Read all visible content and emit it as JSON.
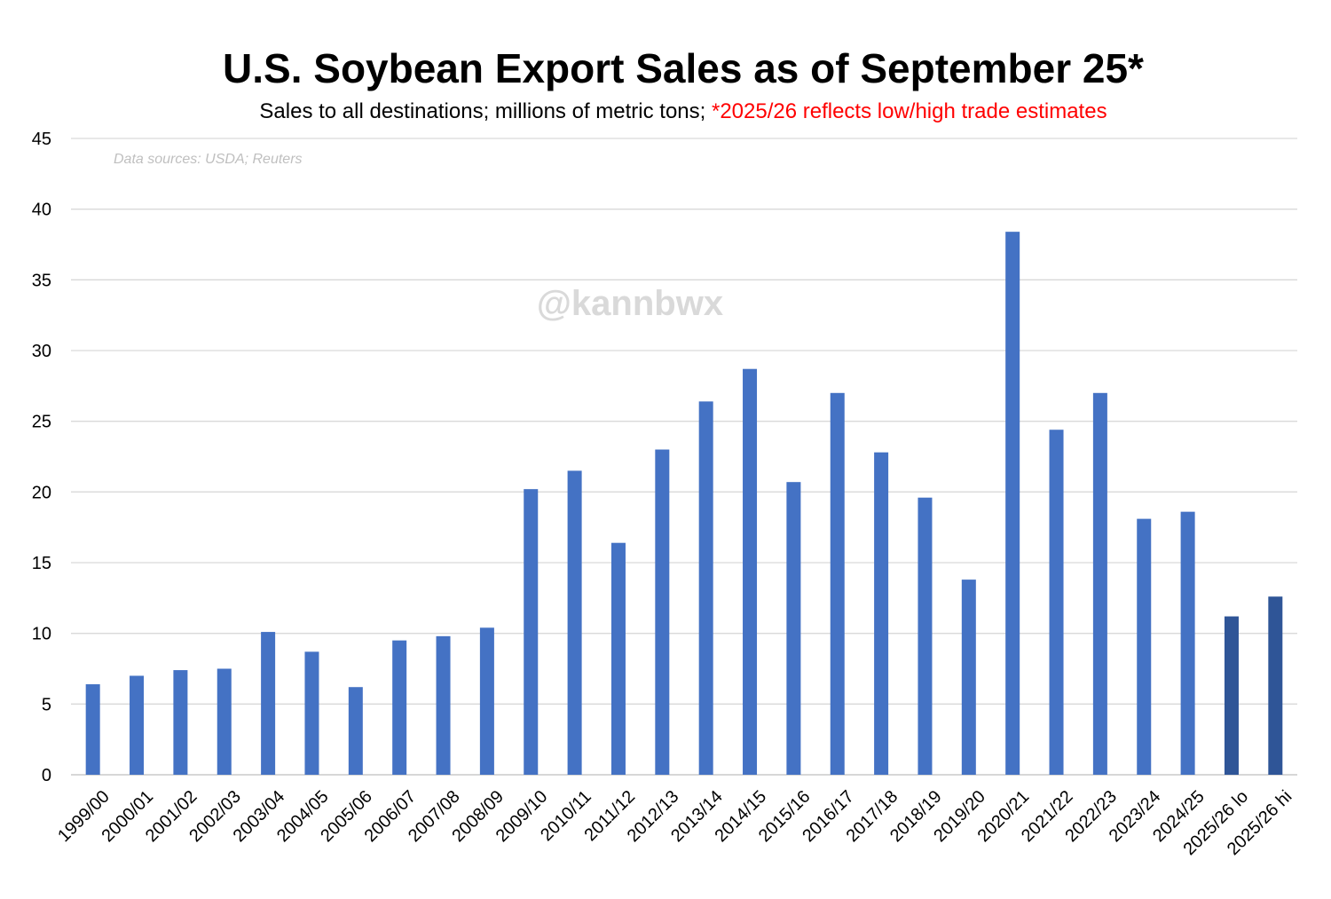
{
  "chart_data": {
    "type": "bar",
    "title": "U.S. Soybean Export Sales as of September 25*",
    "subtitle_main": "Sales to all destinations; millions of metric tons; ",
    "subtitle_note": "*2025/26 reflects low/high trade estimates",
    "source_note": "Data sources: USDA; Reuters",
    "watermark": "@kannbwx",
    "categories": [
      "1999/00",
      "2000/01",
      "2001/02",
      "2002/03",
      "2003/04",
      "2004/05",
      "2005/06",
      "2006/07",
      "2007/08",
      "2008/09",
      "2009/10",
      "2010/11",
      "2011/12",
      "2012/13",
      "2013/14",
      "2014/15",
      "2015/16",
      "2016/17",
      "2017/18",
      "2018/19",
      "2019/20",
      "2020/21",
      "2021/22",
      "2022/23",
      "2023/24",
      "2024/25",
      "2025/26 lo",
      "2025/26 hi"
    ],
    "values": [
      6.4,
      7.0,
      7.4,
      7.5,
      10.1,
      8.7,
      6.2,
      9.5,
      9.8,
      10.4,
      20.2,
      21.5,
      16.4,
      23.0,
      26.4,
      28.7,
      20.7,
      27.0,
      22.8,
      19.6,
      13.8,
      38.4,
      24.4,
      27.0,
      18.1,
      18.6,
      11.2,
      12.6
    ],
    "ylim": [
      0,
      45
    ],
    "yticks": [
      0,
      5,
      10,
      15,
      20,
      25,
      30,
      35,
      40,
      45
    ],
    "grid": true,
    "colors": {
      "bar": "#4472c4",
      "bar_estimate": "#2f5597",
      "grid": "#d9d9d9",
      "subtitle_note": "#ff0000"
    }
  }
}
